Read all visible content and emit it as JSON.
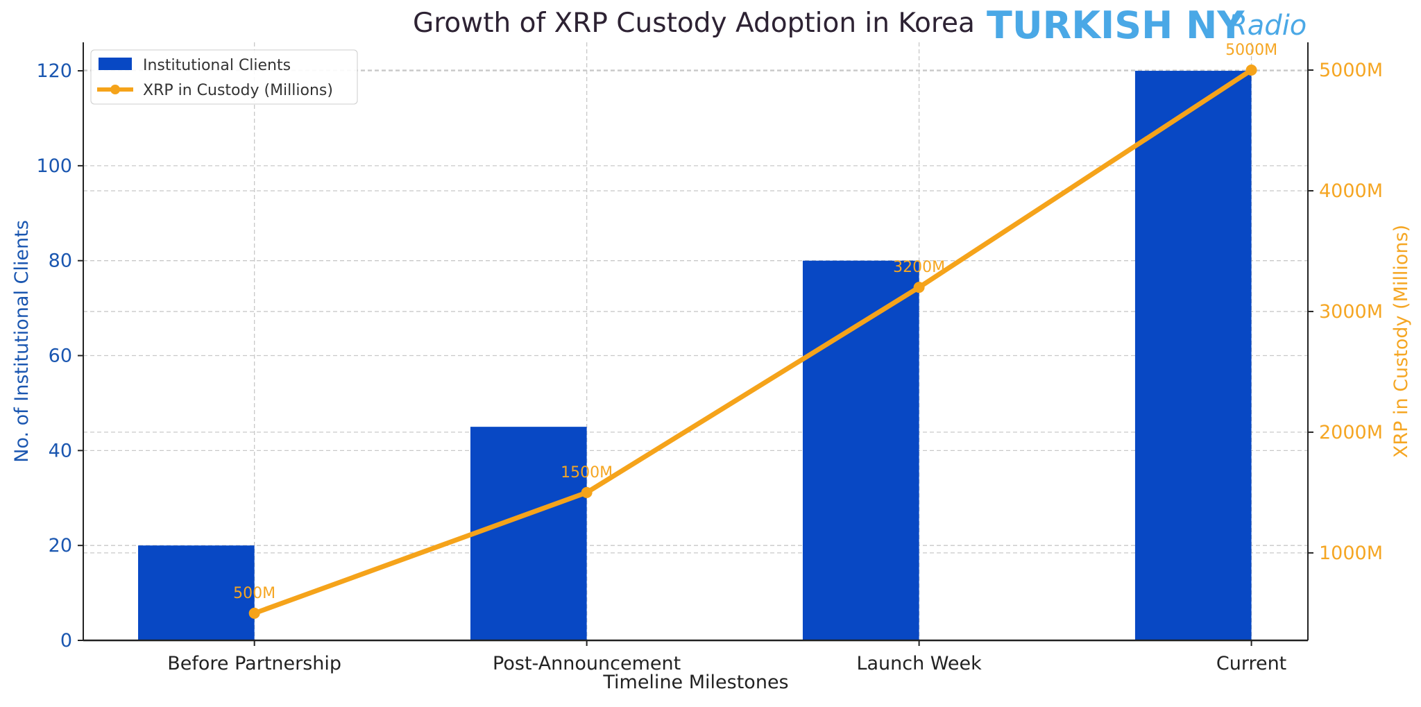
{
  "chart_data": {
    "type": "bar+line",
    "title": "Growth of XRP Custody Adoption in Korea",
    "xlabel": "Timeline Milestones",
    "ylabel_left": "No. of Institutional Clients",
    "ylabel_right": "XRP in Custody (Millions)",
    "categories": [
      "Before Partnership",
      "Post-Announcement",
      "Launch Week",
      "Current"
    ],
    "series": [
      {
        "name": "Institutional Clients",
        "type": "bar",
        "axis": "left",
        "values": [
          20,
          45,
          80,
          120
        ],
        "color": "#0848c4"
      },
      {
        "name": "XRP in Custody (Millions)",
        "type": "line",
        "axis": "right",
        "values": [
          500,
          1500,
          3200,
          5000
        ],
        "color": "#f5a31a",
        "data_labels": [
          "500M",
          "1500M",
          "3200M",
          "5000M"
        ]
      }
    ],
    "left_axis": {
      "ticks": [
        0,
        20,
        40,
        60,
        80,
        100,
        120
      ],
      "tick_labels": [
        "0",
        "20",
        "40",
        "60",
        "80",
        "100",
        "120"
      ],
      "ylim": [
        0,
        126
      ],
      "color": "#1a56b0"
    },
    "right_axis": {
      "ticks": [
        1000,
        2000,
        3000,
        4000,
        5000
      ],
      "tick_labels": [
        "1000M",
        "2000M",
        "3000M",
        "4000M",
        "5000M"
      ],
      "ylim": [
        275,
        5230
      ],
      "color": "#f5a623"
    },
    "grid": true,
    "legend_placement": "top-left"
  },
  "watermark": {
    "text": "TURKISH NY",
    "script": "Radio",
    "color": "#4aa8e6"
  }
}
